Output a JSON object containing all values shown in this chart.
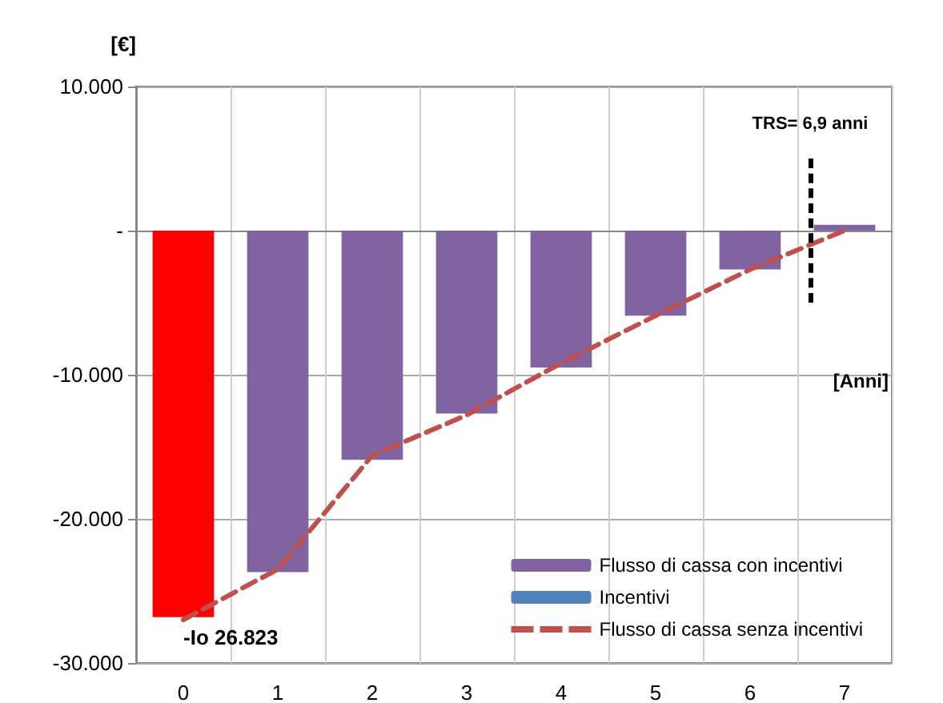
{
  "chart_data": {
    "type": "bar",
    "ylabel": "[€]",
    "xlabel": "[Anni]",
    "categories": [
      "0",
      "1",
      "2",
      "3",
      "4",
      "5",
      "6",
      "7"
    ],
    "series": [
      {
        "name": "Flusso di cassa con incentivi",
        "color": "#8064a2",
        "colors": [
          "#ff0000",
          "#8064a2",
          "#8064a2",
          "#8064a2",
          "#8064a2",
          "#8064a2",
          "#8064a2",
          "#8064a2"
        ],
        "values": [
          -26823,
          -23700,
          -15900,
          -12700,
          -9500,
          -5900,
          -2700,
          400
        ]
      },
      {
        "name": "Incentivi",
        "color": "#4f81bd",
        "values": [
          null,
          null,
          null,
          null,
          null,
          null,
          null,
          null
        ]
      },
      {
        "name": "Flusso di cassa senza incentivi",
        "type": "line",
        "color": "#c0504d",
        "line_style": "dashed",
        "marker": "none",
        "values": [
          -27000,
          -23500,
          -15600,
          -12800,
          -9200,
          -5900,
          -2700,
          0
        ]
      }
    ],
    "ylim": [
      -30000,
      10000
    ],
    "yticks": [
      {
        "value": 10000,
        "label": "10.000"
      },
      {
        "value": 0,
        "label": "-"
      },
      {
        "value": -10000,
        "label": "-10.000"
      },
      {
        "value": -20000,
        "label": "-20.000"
      },
      {
        "value": -30000,
        "label": "-30.000"
      }
    ],
    "annotations": [
      {
        "text": "-Io 26.823",
        "x": "0",
        "y": -26823
      },
      "TRS= 6,9 anni"
    ],
    "grid": true,
    "legend": "bottom right"
  }
}
